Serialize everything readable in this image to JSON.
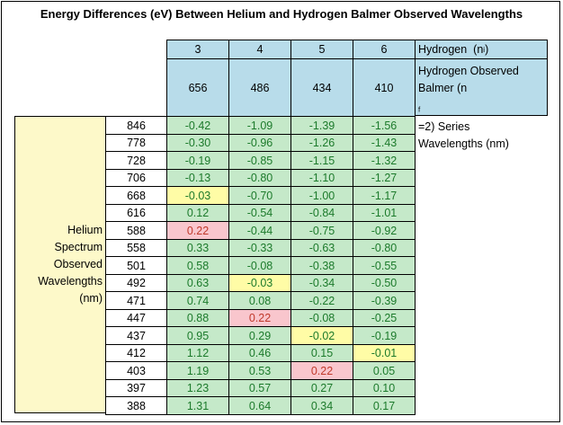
{
  "title": "Energy Differences (eV) Between Helium and Hydrogen Balmer Observed Wavelengths",
  "hydrogen_label_text": "Hydrogen",
  "hydrogen_label_sub": "(n",
  "hydrogen_label_sub_i": "i",
  "hydrogen_label_end": ")",
  "hydrogen_desc": {
    "line1": "Hydrogen Observed",
    "line2a": "Balmer (n",
    "line2sub": "f",
    "line2b": "=2) Series",
    "line3": "Wavelengths  (nm)"
  },
  "helium_label": [
    "Helium",
    "Spectrum",
    "Observed",
    "Wavelengths",
    "(nm)"
  ],
  "columns": [
    {
      "n": "3",
      "wl": "656"
    },
    {
      "n": "4",
      "wl": "486"
    },
    {
      "n": "5",
      "wl": "434"
    },
    {
      "n": "6",
      "wl": "410"
    }
  ],
  "colors": {
    "blue": "#b8dcea",
    "green": "#c5e9c9",
    "yellow": "#fffca6",
    "pink": "#f9c6cd",
    "side": "#fdf9c9"
  },
  "rows": [
    {
      "he": "846",
      "vals": [
        "-0.42",
        "-1.09",
        "-1.39",
        "-1.56"
      ],
      "hl": [
        "g",
        "g",
        "g",
        "g"
      ]
    },
    {
      "he": "778",
      "vals": [
        "-0.30",
        "-0.96",
        "-1.26",
        "-1.43"
      ],
      "hl": [
        "g",
        "g",
        "g",
        "g"
      ]
    },
    {
      "he": "728",
      "vals": [
        "-0.19",
        "-0.85",
        "-1.15",
        "-1.32"
      ],
      "hl": [
        "g",
        "g",
        "g",
        "g"
      ]
    },
    {
      "he": "706",
      "vals": [
        "-0.13",
        "-0.80",
        "-1.10",
        "-1.27"
      ],
      "hl": [
        "g",
        "g",
        "g",
        "g"
      ]
    },
    {
      "he": "668",
      "vals": [
        "-0.03",
        "-0.70",
        "-1.00",
        "-1.17"
      ],
      "hl": [
        "y",
        "g",
        "g",
        "g"
      ]
    },
    {
      "he": "616",
      "vals": [
        "0.12",
        "-0.54",
        "-0.84",
        "-1.01"
      ],
      "hl": [
        "g",
        "g",
        "g",
        "g"
      ]
    },
    {
      "he": "588",
      "vals": [
        "0.22",
        "-0.44",
        "-0.75",
        "-0.92"
      ],
      "hl": [
        "p",
        "g",
        "g",
        "g"
      ]
    },
    {
      "he": "558",
      "vals": [
        "0.33",
        "-0.33",
        "-0.63",
        "-0.80"
      ],
      "hl": [
        "g",
        "g",
        "g",
        "g"
      ]
    },
    {
      "he": "501",
      "vals": [
        "0.58",
        "-0.08",
        "-0.38",
        "-0.55"
      ],
      "hl": [
        "g",
        "g",
        "g",
        "g"
      ]
    },
    {
      "he": "492",
      "vals": [
        "0.63",
        "-0.03",
        "-0.34",
        "-0.50"
      ],
      "hl": [
        "g",
        "y",
        "g",
        "g"
      ]
    },
    {
      "he": "471",
      "vals": [
        "0.74",
        "0.08",
        "-0.22",
        "-0.39"
      ],
      "hl": [
        "g",
        "g",
        "g",
        "g"
      ]
    },
    {
      "he": "447",
      "vals": [
        "0.88",
        "0.22",
        "-0.08",
        "-0.25"
      ],
      "hl": [
        "g",
        "p",
        "g",
        "g"
      ]
    },
    {
      "he": "437",
      "vals": [
        "0.95",
        "0.29",
        "-0.02",
        "-0.19"
      ],
      "hl": [
        "g",
        "g",
        "y",
        "g"
      ]
    },
    {
      "he": "412",
      "vals": [
        "1.12",
        "0.46",
        "0.15",
        "-0.01"
      ],
      "hl": [
        "g",
        "g",
        "g",
        "y"
      ]
    },
    {
      "he": "403",
      "vals": [
        "1.19",
        "0.53",
        "0.22",
        "0.05"
      ],
      "hl": [
        "g",
        "g",
        "p",
        "g"
      ]
    },
    {
      "he": "397",
      "vals": [
        "1.23",
        "0.57",
        "0.27",
        "0.10"
      ],
      "hl": [
        "g",
        "g",
        "g",
        "g"
      ]
    },
    {
      "he": "388",
      "vals": [
        "1.31",
        "0.64",
        "0.34",
        "0.17"
      ],
      "hl": [
        "g",
        "g",
        "g",
        "g"
      ]
    }
  ]
}
